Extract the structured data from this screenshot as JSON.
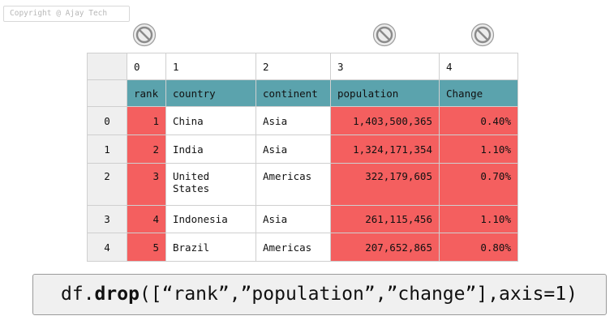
{
  "copyright": "Copyright @ Ajay Tech",
  "icons": {
    "drop_marker": "no-entry-icon"
  },
  "colors": {
    "header_teal": "#5ba3ad",
    "highlight_red": "#f45f5f",
    "index_gray": "#efefef"
  },
  "table": {
    "column_numbers": [
      "0",
      "1",
      "2",
      "3",
      "4"
    ],
    "column_names": [
      "rank",
      "country",
      "continent",
      "population",
      "Change"
    ],
    "rows": [
      {
        "index": "0",
        "rank": "1",
        "country": "China",
        "continent": "Asia",
        "population": "1,403,500,365",
        "change": "0.40%"
      },
      {
        "index": "1",
        "rank": "2",
        "country": "India",
        "continent": "Asia",
        "population": "1,324,171,354",
        "change": "1.10%"
      },
      {
        "index": "2",
        "rank": "3",
        "country": "United States",
        "continent": "Americas",
        "population": "322,179,605",
        "change": "0.70%"
      },
      {
        "index": "3",
        "rank": "4",
        "country": "Indonesia",
        "continent": "Asia",
        "population": "261,115,456",
        "change": "1.10%"
      },
      {
        "index": "4",
        "rank": "5",
        "country": "Brazil",
        "continent": "Americas",
        "population": "207,652,865",
        "change": "0.80%"
      }
    ]
  },
  "code": {
    "prefix": "df.",
    "method": "drop",
    "args": "([“rank”,”population”,”change”],axis=1)"
  }
}
